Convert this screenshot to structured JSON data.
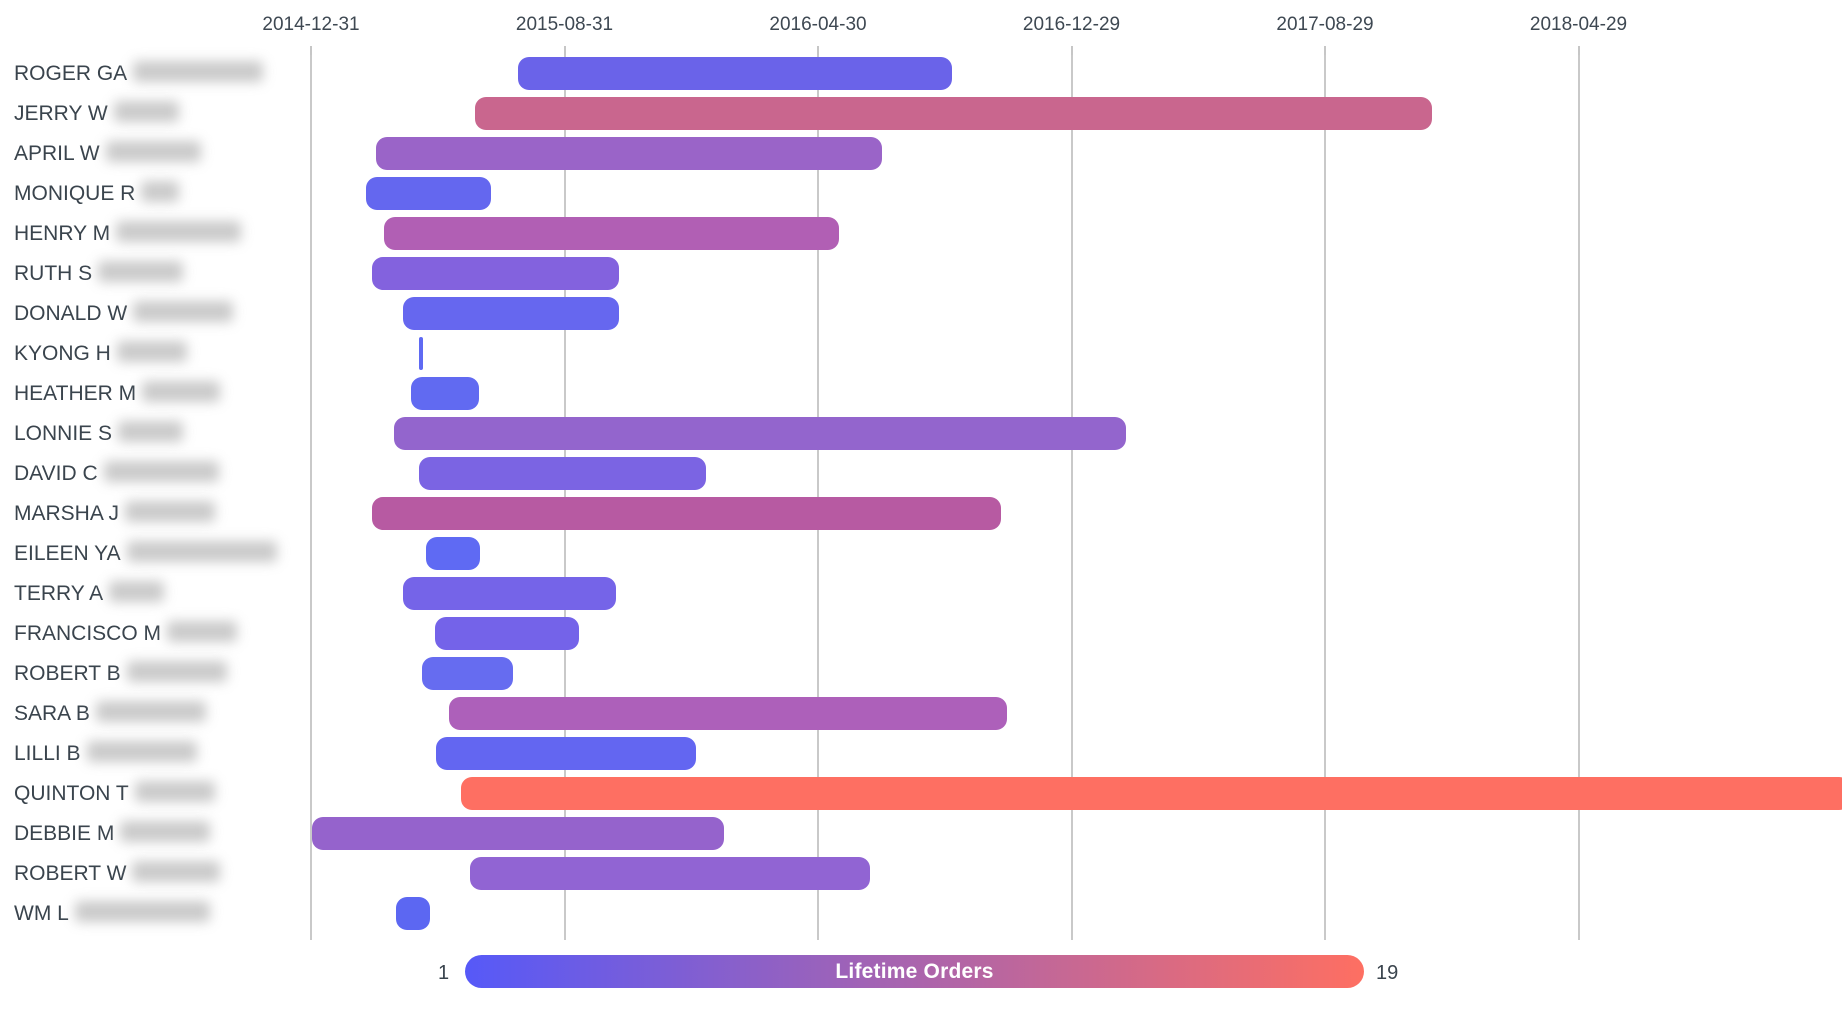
{
  "chart_data": {
    "type": "gantt",
    "title": "",
    "x_axis": {
      "side": "top",
      "grid": true,
      "range": [
        "2014-12-31",
        "2018-04-29"
      ],
      "ticks": [
        "2014-12-31",
        "2015-08-31",
        "2016-04-30",
        "2016-12-29",
        "2017-08-29",
        "2018-04-29"
      ]
    },
    "legend": {
      "title": "Lifetime Orders",
      "min": "1",
      "max": "19",
      "color_min": "#5659f8",
      "color_max": "#fe6f62"
    },
    "rows": [
      {
        "label": "ROGER GA",
        "redacted_width": 130,
        "start": "2015-07-17",
        "end": "2016-09-05",
        "color": "#6a63e9",
        "orders_estimate": 3
      },
      {
        "label": "JERRY W",
        "redacted_width": 65,
        "start": "2015-06-06",
        "end": "2017-12-10",
        "color": "#c9668e",
        "orders_estimate": 13
      },
      {
        "label": "APRIL W",
        "redacted_width": 95,
        "start": "2015-03-03",
        "end": "2016-06-30",
        "color": "#9a64c8",
        "orders_estimate": 8
      },
      {
        "label": "MONIQUE R",
        "redacted_width": 38,
        "start": "2015-02-22",
        "end": "2015-06-22",
        "color": "#6467ef",
        "orders_estimate": 2
      },
      {
        "label": "HENRY M",
        "redacted_width": 125,
        "start": "2015-03-11",
        "end": "2016-05-20",
        "color": "#b15fb4",
        "orders_estimate": 10
      },
      {
        "label": "RUTH S",
        "redacted_width": 85,
        "start": "2015-02-27",
        "end": "2015-10-22",
        "color": "#8362de",
        "orders_estimate": 5
      },
      {
        "label": "DONALD W",
        "redacted_width": 100,
        "start": "2015-03-29",
        "end": "2015-10-22",
        "color": "#6667ef",
        "orders_estimate": 2
      },
      {
        "label": "KYONG H",
        "redacted_width": 70,
        "start": "2015-04-14",
        "end": "2015-04-17",
        "color": "#5f6af3",
        "orders_estimate": 1
      },
      {
        "label": "HEATHER M",
        "redacted_width": 78,
        "start": "2015-04-06",
        "end": "2015-06-10",
        "color": "#616af1",
        "orders_estimate": 2
      },
      {
        "label": "LONNIE S",
        "redacted_width": 65,
        "start": "2015-03-21",
        "end": "2017-02-19",
        "color": "#9365cd",
        "orders_estimate": 7
      },
      {
        "label": "DAVID C",
        "redacted_width": 115,
        "start": "2015-04-14",
        "end": "2016-01-14",
        "color": "#7b64e3",
        "orders_estimate": 4
      },
      {
        "label": "MARSHA J",
        "redacted_width": 90,
        "start": "2015-02-27",
        "end": "2016-10-22",
        "color": "#b75aa2",
        "orders_estimate": 11
      },
      {
        "label": "EILEEN YA",
        "redacted_width": 150,
        "start": "2015-04-20",
        "end": "2015-06-11",
        "color": "#5f6af3",
        "orders_estimate": 1
      },
      {
        "label": "TERRY A",
        "redacted_width": 55,
        "start": "2015-03-29",
        "end": "2015-10-19",
        "color": "#7564e8",
        "orders_estimate": 4
      },
      {
        "label": "FRANCISCO M",
        "redacted_width": 70,
        "start": "2015-04-29",
        "end": "2015-09-14",
        "color": "#7463e9",
        "orders_estimate": 4
      },
      {
        "label": "ROBERT B",
        "redacted_width": 100,
        "start": "2015-04-16",
        "end": "2015-07-13",
        "color": "#666cf0",
        "orders_estimate": 2
      },
      {
        "label": "SARA B",
        "redacted_width": 110,
        "start": "2015-05-12",
        "end": "2016-10-28",
        "color": "#ad60ba",
        "orders_estimate": 10
      },
      {
        "label": "LILLI B",
        "redacted_width": 110,
        "start": "2015-04-30",
        "end": "2016-01-04",
        "color": "#6366f1",
        "orders_estimate": 2
      },
      {
        "label": "QUINTON T",
        "redacted_width": 80,
        "start": "2015-05-24",
        "end": "2019-01-14",
        "color": "#fe6f62",
        "orders_estimate": 19
      },
      {
        "label": "DEBBIE M",
        "redacted_width": 90,
        "start": "2015-01-01",
        "end": "2016-01-31",
        "color": "#9563cc",
        "orders_estimate": 7
      },
      {
        "label": "ROBERT W",
        "redacted_width": 88,
        "start": "2015-06-01",
        "end": "2016-06-19",
        "color": "#9164d3",
        "orders_estimate": 7
      },
      {
        "label": "WM L",
        "redacted_width": 135,
        "start": "2015-03-22",
        "end": "2015-04-24",
        "color": "#5c67f2",
        "orders_estimate": 1
      }
    ]
  }
}
